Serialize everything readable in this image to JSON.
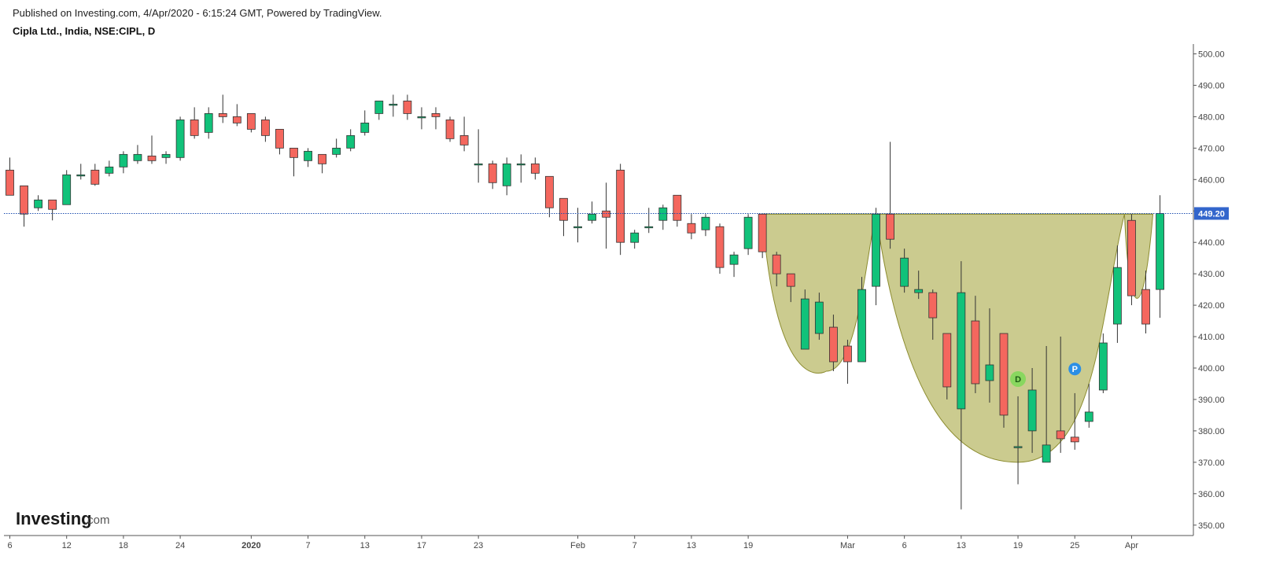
{
  "header": {
    "published": "Published on Investing.com, 4/Apr/2020 - 6:15:24 GMT, Powered by TradingView.",
    "symbol": "Cipla Ltd., India, NSE:CIPL, D"
  },
  "watermark": {
    "brand": "Investing",
    "suffix": ".com"
  },
  "colors": {
    "up": "#11c27a",
    "down": "#f4675e",
    "pattern_fill": "#c5c583",
    "pattern_stroke": "#8c8c30",
    "last_price_badge": "#3366cc"
  },
  "chart_data": {
    "type": "candlestick",
    "ylim": [
      346,
      504
    ],
    "y_ticks": [
      "500.00",
      "490.00",
      "480.00",
      "470.00",
      "460.00",
      "450.00",
      "440.00",
      "430.00",
      "420.00",
      "410.00",
      "400.00",
      "390.00",
      "380.00",
      "370.00",
      "360.00",
      "350.00"
    ],
    "x_tick_labels": [
      {
        "label": "6",
        "index": 0
      },
      {
        "label": "12",
        "index": 4
      },
      {
        "label": "18",
        "index": 8
      },
      {
        "label": "24",
        "index": 12
      },
      {
        "label": "2020",
        "index": 17
      },
      {
        "label": "7",
        "index": 21
      },
      {
        "label": "13",
        "index": 25
      },
      {
        "label": "17",
        "index": 29
      },
      {
        "label": "23",
        "index": 33
      },
      {
        "label": "Feb",
        "index": 40
      },
      {
        "label": "7",
        "index": 44
      },
      {
        "label": "13",
        "index": 48
      },
      {
        "label": "19",
        "index": 52
      },
      {
        "label": "Mar",
        "index": 59
      },
      {
        "label": "6",
        "index": 63
      },
      {
        "label": "13",
        "index": 67
      },
      {
        "label": "19",
        "index": 71
      },
      {
        "label": "25",
        "index": 75
      },
      {
        "label": "Apr",
        "index": 79
      }
    ],
    "candles": [
      {
        "o": 463,
        "h": 467,
        "l": 455,
        "c": 455
      },
      {
        "o": 458,
        "h": 458,
        "l": 445,
        "c": 449
      },
      {
        "o": 451,
        "h": 455,
        "l": 450,
        "c": 453.5
      },
      {
        "o": 453.5,
        "h": 453.5,
        "l": 447,
        "c": 450.5
      },
      {
        "o": 452,
        "h": 463,
        "l": 452,
        "c": 461.5
      },
      {
        "o": 461.5,
        "h": 465,
        "l": 460,
        "c": 461.5
      },
      {
        "o": 463,
        "h": 465,
        "l": 458,
        "c": 458.5
      },
      {
        "o": 462,
        "h": 466,
        "l": 461,
        "c": 464
      },
      {
        "o": 464,
        "h": 469,
        "l": 462,
        "c": 468
      },
      {
        "o": 466,
        "h": 471,
        "l": 465,
        "c": 468
      },
      {
        "o": 467.5,
        "h": 474,
        "l": 465,
        "c": 466
      },
      {
        "o": 467,
        "h": 469,
        "l": 465,
        "c": 468
      },
      {
        "o": 467,
        "h": 480,
        "l": 466,
        "c": 479
      },
      {
        "o": 479,
        "h": 483,
        "l": 473,
        "c": 474
      },
      {
        "o": 475,
        "h": 483,
        "l": 473,
        "c": 481
      },
      {
        "o": 481,
        "h": 487,
        "l": 478,
        "c": 480
      },
      {
        "o": 480,
        "h": 484,
        "l": 477,
        "c": 478
      },
      {
        "o": 481,
        "h": 481,
        "l": 475,
        "c": 476
      },
      {
        "o": 479,
        "h": 480,
        "l": 472,
        "c": 474
      },
      {
        "o": 476,
        "h": 476,
        "l": 468,
        "c": 470
      },
      {
        "o": 470,
        "h": 470,
        "l": 461,
        "c": 467
      },
      {
        "o": 466,
        "h": 470,
        "l": 464,
        "c": 469
      },
      {
        "o": 468,
        "h": 468,
        "l": 462,
        "c": 465
      },
      {
        "o": 468,
        "h": 473,
        "l": 467,
        "c": 470
      },
      {
        "o": 470,
        "h": 476,
        "l": 469,
        "c": 474
      },
      {
        "o": 475,
        "h": 482,
        "l": 474,
        "c": 478
      },
      {
        "o": 481,
        "h": 485,
        "l": 479,
        "c": 485
      },
      {
        "o": 484,
        "h": 487,
        "l": 480,
        "c": 484
      },
      {
        "o": 485,
        "h": 487,
        "l": 479,
        "c": 481
      },
      {
        "o": 480,
        "h": 483,
        "l": 476,
        "c": 480
      },
      {
        "o": 481,
        "h": 483,
        "l": 476,
        "c": 480
      },
      {
        "o": 479,
        "h": 480,
        "l": 472,
        "c": 473
      },
      {
        "o": 474,
        "h": 480,
        "l": 469,
        "c": 471
      },
      {
        "o": 465,
        "h": 476,
        "l": 459,
        "c": 465
      },
      {
        "o": 465,
        "h": 466,
        "l": 457,
        "c": 459
      },
      {
        "o": 458,
        "h": 467,
        "l": 455,
        "c": 465
      },
      {
        "o": 465,
        "h": 468,
        "l": 459,
        "c": 465
      },
      {
        "o": 465,
        "h": 467,
        "l": 460,
        "c": 462
      },
      {
        "o": 461,
        "h": 461,
        "l": 448,
        "c": 451
      },
      {
        "o": 454,
        "h": 454,
        "l": 442,
        "c": 447
      },
      {
        "o": 445,
        "h": 451,
        "l": 440,
        "c": 445
      },
      {
        "o": 447,
        "h": 453,
        "l": 446,
        "c": 449
      },
      {
        "o": 450,
        "h": 459,
        "l": 438,
        "c": 448
      },
      {
        "o": 463,
        "h": 465,
        "l": 436,
        "c": 440
      },
      {
        "o": 440,
        "h": 444,
        "l": 438,
        "c": 443
      },
      {
        "o": 445,
        "h": 451,
        "l": 443,
        "c": 445
      },
      {
        "o": 447,
        "h": 452,
        "l": 444,
        "c": 451
      },
      {
        "o": 455,
        "h": 455,
        "l": 445,
        "c": 447
      },
      {
        "o": 446,
        "h": 449,
        "l": 441,
        "c": 443
      },
      {
        "o": 444,
        "h": 449,
        "l": 442,
        "c": 448
      },
      {
        "o": 445,
        "h": 446,
        "l": 430,
        "c": 432
      },
      {
        "o": 433,
        "h": 437,
        "l": 429,
        "c": 436
      },
      {
        "o": 438,
        "h": 449,
        "l": 436,
        "c": 448
      },
      {
        "o": 449,
        "h": 449,
        "l": 435,
        "c": 437
      },
      {
        "o": 436,
        "h": 437,
        "l": 426,
        "c": 430
      },
      {
        "o": 430,
        "h": 430,
        "l": 421,
        "c": 426
      },
      {
        "o": 406,
        "h": 425,
        "l": 406,
        "c": 422
      },
      {
        "o": 411,
        "h": 424,
        "l": 409,
        "c": 421
      },
      {
        "o": 413,
        "h": 417,
        "l": 399,
        "c": 402
      },
      {
        "o": 407,
        "h": 409,
        "l": 395,
        "c": 402
      },
      {
        "o": 402,
        "h": 429,
        "l": 402,
        "c": 425
      },
      {
        "o": 426,
        "h": 451,
        "l": 420,
        "c": 449
      },
      {
        "o": 449,
        "h": 472,
        "l": 438,
        "c": 441
      },
      {
        "o": 426,
        "h": 438,
        "l": 424,
        "c": 435
      },
      {
        "o": 424,
        "h": 431,
        "l": 422,
        "c": 425
      },
      {
        "o": 424,
        "h": 425,
        "l": 409,
        "c": 416
      },
      {
        "o": 411,
        "h": 411,
        "l": 390,
        "c": 394
      },
      {
        "o": 387,
        "h": 434,
        "l": 355,
        "c": 424
      },
      {
        "o": 415,
        "h": 423,
        "l": 392,
        "c": 395
      },
      {
        "o": 396,
        "h": 419,
        "l": 389,
        "c": 401
      },
      {
        "o": 411,
        "h": 411,
        "l": 381,
        "c": 385
      },
      {
        "o": 375,
        "h": 391,
        "l": 363,
        "c": 375
      },
      {
        "o": 380,
        "h": 400,
        "l": 373,
        "c": 393
      },
      {
        "o": 370,
        "h": 407,
        "l": 370,
        "c": 375.5
      },
      {
        "o": 380,
        "h": 410,
        "l": 373,
        "c": 377.5
      },
      {
        "o": 378,
        "h": 392,
        "l": 374,
        "c": 376.5
      },
      {
        "o": 383,
        "h": 395,
        "l": 381,
        "c": 386
      },
      {
        "o": 393,
        "h": 411,
        "l": 392,
        "c": 408
      },
      {
        "o": 414,
        "h": 439,
        "l": 408,
        "c": 432
      },
      {
        "o": 447,
        "h": 449,
        "l": 420,
        "c": 423
      },
      {
        "o": 425,
        "h": 431,
        "l": 411,
        "c": 414
      },
      {
        "o": 425,
        "h": 455,
        "l": 416,
        "c": 449.2
      }
    ],
    "last_price": {
      "label": "449.20",
      "value": 449.2
    },
    "pattern": {
      "type": "cup_and_handle",
      "neckline": 449,
      "small_cup": {
        "start_index": 53,
        "end_index": 61,
        "bottom_index": 57.5,
        "bottom": 399
      },
      "large_cup": {
        "start_index": 61,
        "end_index": 78.5,
        "bottom_index": 71,
        "bottom": 370
      },
      "handle": {
        "start_index": 78.5,
        "end_index": 80.5,
        "bottom": 414
      }
    },
    "markers": [
      {
        "label": "D",
        "index": 71,
        "value": 396.5,
        "color": "#7ed957",
        "text_color": "#1e5c14"
      },
      {
        "label": "P",
        "index": 75,
        "value": 399.7,
        "color": "#2b8fe6",
        "text_color": "#ffffff"
      }
    ]
  }
}
